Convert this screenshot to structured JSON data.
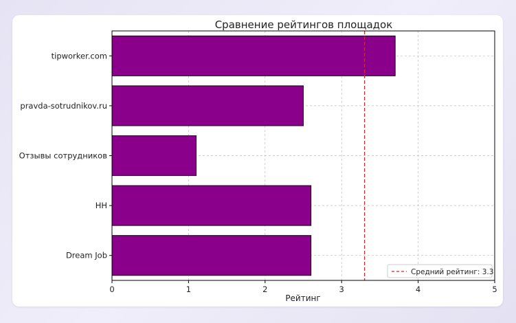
{
  "chart_data": {
    "type": "bar",
    "orientation": "horizontal",
    "title": "Сравнение рейтингов площадок",
    "xlabel": "Рейтинг",
    "ylabel": "",
    "categories": [
      "tipworker.com",
      "pravda-sotrudnikov.ru",
      "Отзывы сотрудников",
      "HH",
      "Dream Job"
    ],
    "values": [
      3.7,
      2.5,
      1.1,
      2.6,
      2.6
    ],
    "xlim": [
      0,
      5
    ],
    "xticks": [
      "0",
      "1",
      "2",
      "3",
      "4",
      "5"
    ],
    "grid": true,
    "reference_line": {
      "value": 3.3,
      "label": "Средний рейтинг: 3.3",
      "color": "#d62728",
      "style": "dashed"
    },
    "legend_position": "bottom-right",
    "bar_color": "#8b008b",
    "bar_edge_color": "#1a001a"
  }
}
